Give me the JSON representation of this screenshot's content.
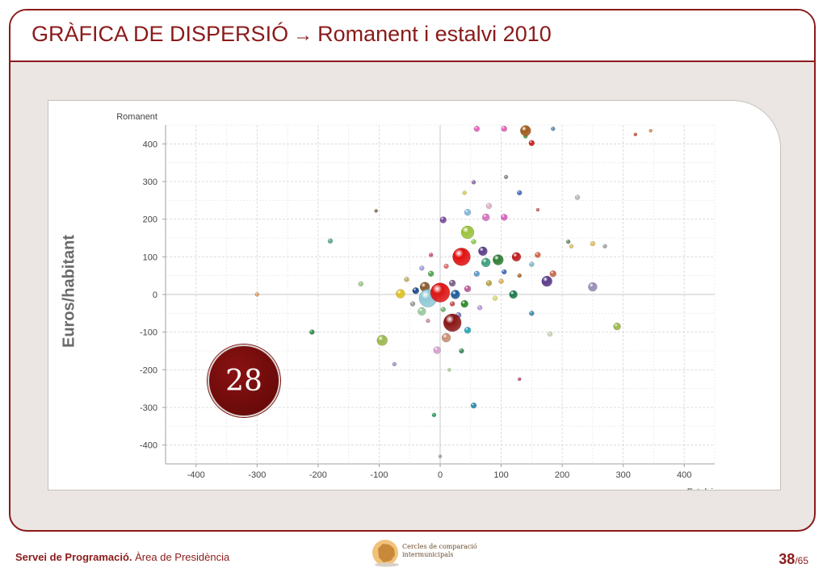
{
  "title": {
    "prefix": "GRÀFICA DE DISPERSIÓ",
    "arrow": "→",
    "suffix": "Romanent i estalvi 2010"
  },
  "side_axis_label": "Euros/habitant",
  "badge": "28",
  "footer": {
    "org": "Servei de Programació.",
    "area": "Àrea de Presidència",
    "logo_line1": "Cercles de comparació",
    "logo_line2": "intermunicipals",
    "page_current": "38",
    "page_total": "/65"
  },
  "colors": {
    "brand": "#8b1a1a",
    "badge": "#7a0e0e",
    "slide_bg": "#ebe6e3"
  },
  "chart_data": {
    "type": "scatter",
    "xlabel": "Estalvi",
    "ylabel": "Romanent",
    "xlim": [
      -450,
      450
    ],
    "ylim": [
      -450,
      450
    ],
    "xticks": [
      -400,
      -300,
      -200,
      -100,
      0,
      100,
      200,
      300,
      400
    ],
    "yticks": [
      400,
      300,
      200,
      100,
      0,
      -100,
      -200,
      -300,
      -400
    ],
    "grid": true,
    "points": [
      {
        "x": 35,
        "y": 100,
        "size": 22,
        "color": "#e01010"
      },
      {
        "x": 0,
        "y": 5,
        "size": 24,
        "color": "#dd1515"
      },
      {
        "x": -20,
        "y": -10,
        "size": 22,
        "color": "#8fc9d6"
      },
      {
        "x": 20,
        "y": -75,
        "size": 22,
        "color": "#8b1515"
      },
      {
        "x": 140,
        "y": 435,
        "size": 13,
        "color": "#a35a1a"
      },
      {
        "x": 45,
        "y": 165,
        "size": 16,
        "color": "#9ac23a"
      },
      {
        "x": 175,
        "y": 35,
        "size": 13,
        "color": "#5a3a8a"
      },
      {
        "x": 250,
        "y": 20,
        "size": 11,
        "color": "#9a8ab8"
      },
      {
        "x": 290,
        "y": -85,
        "size": 9,
        "color": "#9ab84a"
      },
      {
        "x": -95,
        "y": -122,
        "size": 13,
        "color": "#9ab84a"
      },
      {
        "x": 95,
        "y": 92,
        "size": 13,
        "color": "#2e7d32"
      },
      {
        "x": 75,
        "y": 85,
        "size": 11,
        "color": "#3aa07a"
      },
      {
        "x": 70,
        "y": 115,
        "size": 11,
        "color": "#5a3a8a"
      },
      {
        "x": 125,
        "y": 100,
        "size": 11,
        "color": "#c21a1a"
      },
      {
        "x": -65,
        "y": 2,
        "size": 11,
        "color": "#e0c020"
      },
      {
        "x": -25,
        "y": 20,
        "size": 12,
        "color": "#8a5a2a"
      },
      {
        "x": 25,
        "y": 0,
        "size": 11,
        "color": "#1a5a9a"
      },
      {
        "x": -40,
        "y": 10,
        "size": 8,
        "color": "#1a4a8a"
      },
      {
        "x": 120,
        "y": 0,
        "size": 10,
        "color": "#1a7a4a"
      },
      {
        "x": 10,
        "y": -115,
        "size": 11,
        "color": "#c89070"
      },
      {
        "x": -5,
        "y": -148,
        "size": 9,
        "color": "#d8a0d0"
      },
      {
        "x": -30,
        "y": -45,
        "size": 10,
        "color": "#9ac8a0"
      },
      {
        "x": 40,
        "y": -25,
        "size": 9,
        "color": "#2a8a2a"
      },
      {
        "x": 45,
        "y": -95,
        "size": 8,
        "color": "#20a8b8"
      },
      {
        "x": 5,
        "y": 198,
        "size": 8,
        "color": "#7a4a9a"
      },
      {
        "x": 75,
        "y": 205,
        "size": 9,
        "color": "#d870c0"
      },
      {
        "x": 45,
        "y": 218,
        "size": 8,
        "color": "#80b8e0"
      },
      {
        "x": 105,
        "y": 205,
        "size": 8,
        "color": "#d860c0"
      },
      {
        "x": 60,
        "y": 440,
        "size": 7,
        "color": "#e860b8"
      },
      {
        "x": 105,
        "y": 440,
        "size": 7,
        "color": "#e860b8"
      },
      {
        "x": 150,
        "y": 402,
        "size": 7,
        "color": "#d01818"
      },
      {
        "x": 108,
        "y": 312,
        "size": 5,
        "color": "#8a8a8a"
      },
      {
        "x": 130,
        "y": 270,
        "size": 6,
        "color": "#4a6ab8"
      },
      {
        "x": 55,
        "y": 298,
        "size": 5,
        "color": "#8a6aaa"
      },
      {
        "x": 80,
        "y": 235,
        "size": 7,
        "color": "#e0b0c8"
      },
      {
        "x": 40,
        "y": 270,
        "size": 5,
        "color": "#d8d050"
      },
      {
        "x": 140,
        "y": 420,
        "size": 5,
        "color": "#4a9a4a"
      },
      {
        "x": 185,
        "y": 440,
        "size": 5,
        "color": "#5a8aaa"
      },
      {
        "x": 225,
        "y": 258,
        "size": 6,
        "color": "#b8b8b8"
      },
      {
        "x": 250,
        "y": 135,
        "size": 6,
        "color": "#e0c060"
      },
      {
        "x": 270,
        "y": 128,
        "size": 5,
        "color": "#a0a0a0"
      },
      {
        "x": 215,
        "y": 128,
        "size": 5,
        "color": "#e0c060"
      },
      {
        "x": 185,
        "y": 55,
        "size": 8,
        "color": "#c86a4a"
      },
      {
        "x": 160,
        "y": 105,
        "size": 7,
        "color": "#d86040"
      },
      {
        "x": 150,
        "y": 80,
        "size": 6,
        "color": "#80b8d0"
      },
      {
        "x": 210,
        "y": 140,
        "size": 5,
        "color": "#6a8a6a"
      },
      {
        "x": 180,
        "y": -105,
        "size": 6,
        "color": "#c8d8b8"
      },
      {
        "x": 150,
        "y": -50,
        "size": 6,
        "color": "#3a8aaa"
      },
      {
        "x": 55,
        "y": -295,
        "size": 7,
        "color": "#2a8aaa"
      },
      {
        "x": -10,
        "y": -320,
        "size": 5,
        "color": "#2a9a5a"
      },
      {
        "x": -180,
        "y": 142,
        "size": 6,
        "color": "#5aa88a"
      },
      {
        "x": -130,
        "y": 28,
        "size": 6,
        "color": "#9ac88a"
      },
      {
        "x": -210,
        "y": -100,
        "size": 6,
        "color": "#2a8a4a"
      },
      {
        "x": -300,
        "y": 0,
        "size": 5,
        "color": "#e0a060"
      },
      {
        "x": -75,
        "y": -185,
        "size": 5,
        "color": "#9a9aca"
      },
      {
        "x": -105,
        "y": 222,
        "size": 4,
        "color": "#7a6a4a"
      },
      {
        "x": 20,
        "y": 30,
        "size": 8,
        "color": "#7a5a8a"
      },
      {
        "x": 45,
        "y": 15,
        "size": 8,
        "color": "#c05a9a"
      },
      {
        "x": 60,
        "y": 55,
        "size": 7,
        "color": "#5a9aca"
      },
      {
        "x": 80,
        "y": 30,
        "size": 7,
        "color": "#b8a040"
      },
      {
        "x": -15,
        "y": 55,
        "size": 7,
        "color": "#4aa84a"
      },
      {
        "x": 10,
        "y": 75,
        "size": 6,
        "color": "#e06a6a"
      },
      {
        "x": -30,
        "y": 70,
        "size": 6,
        "color": "#a0a0e0"
      },
      {
        "x": -55,
        "y": 40,
        "size": 6,
        "color": "#c0b060"
      },
      {
        "x": 100,
        "y": 35,
        "size": 6,
        "color": "#e0b050"
      },
      {
        "x": 30,
        "y": -55,
        "size": 7,
        "color": "#7a7aba"
      },
      {
        "x": 20,
        "y": -25,
        "size": 6,
        "color": "#c84a4a"
      },
      {
        "x": 5,
        "y": -40,
        "size": 6,
        "color": "#6ab86a"
      },
      {
        "x": 65,
        "y": -35,
        "size": 6,
        "color": "#ba9ada"
      },
      {
        "x": 90,
        "y": -10,
        "size": 6,
        "color": "#dada6a"
      },
      {
        "x": -15,
        "y": 105,
        "size": 5,
        "color": "#d04a8a"
      },
      {
        "x": 55,
        "y": 140,
        "size": 6,
        "color": "#8aca4a"
      },
      {
        "x": 105,
        "y": 60,
        "size": 6,
        "color": "#3a6aba"
      },
      {
        "x": 130,
        "y": 50,
        "size": 5,
        "color": "#aa6a2a"
      },
      {
        "x": -45,
        "y": -25,
        "size": 6,
        "color": "#9a9a9a"
      },
      {
        "x": -20,
        "y": -70,
        "size": 5,
        "color": "#ca8aaa"
      },
      {
        "x": 35,
        "y": -150,
        "size": 6,
        "color": "#3a8a5a"
      },
      {
        "x": 15,
        "y": -200,
        "size": 4,
        "color": "#aaca8a"
      },
      {
        "x": 160,
        "y": 225,
        "size": 4,
        "color": "#ca5a5a"
      },
      {
        "x": 130,
        "y": -225,
        "size": 4,
        "color": "#ca4a6a"
      },
      {
        "x": 0,
        "y": -430,
        "size": 4,
        "color": "#a0a0a0"
      },
      {
        "x": 320,
        "y": 425,
        "size": 4,
        "color": "#ca4a3a"
      },
      {
        "x": 345,
        "y": 435,
        "size": 4,
        "color": "#e08a4a"
      }
    ]
  }
}
